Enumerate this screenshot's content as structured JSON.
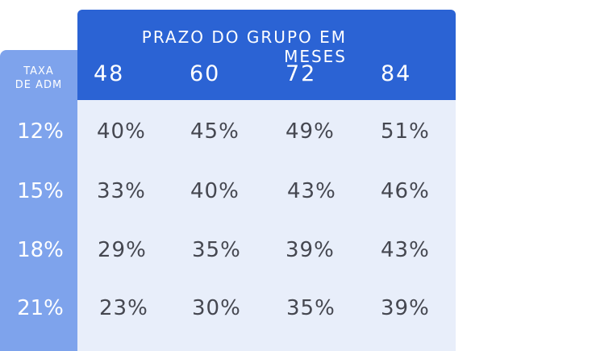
{
  "header": {
    "title": "PRAZO DO GRUPO EM MESES"
  },
  "sidebar": {
    "label_line1": "TAXA",
    "label_line2": "DE ADM"
  },
  "columns": [
    "48",
    "60",
    "72",
    "84"
  ],
  "rows": [
    {
      "label": "12%",
      "values": [
        "40%",
        "45%",
        "49%",
        "51%"
      ]
    },
    {
      "label": "15%",
      "values": [
        "33%",
        "40%",
        "43%",
        "46%"
      ]
    },
    {
      "label": "18%",
      "values": [
        "29%",
        "35%",
        "39%",
        "43%"
      ]
    },
    {
      "label": "21%",
      "values": [
        "23%",
        "30%",
        "35%",
        "39%"
      ]
    }
  ],
  "colors": {
    "header_bg": "#2b63d4",
    "sidebar_bg": "#7ea3ec",
    "body_bg": "#e8eefa",
    "cell_text": "#454750"
  }
}
